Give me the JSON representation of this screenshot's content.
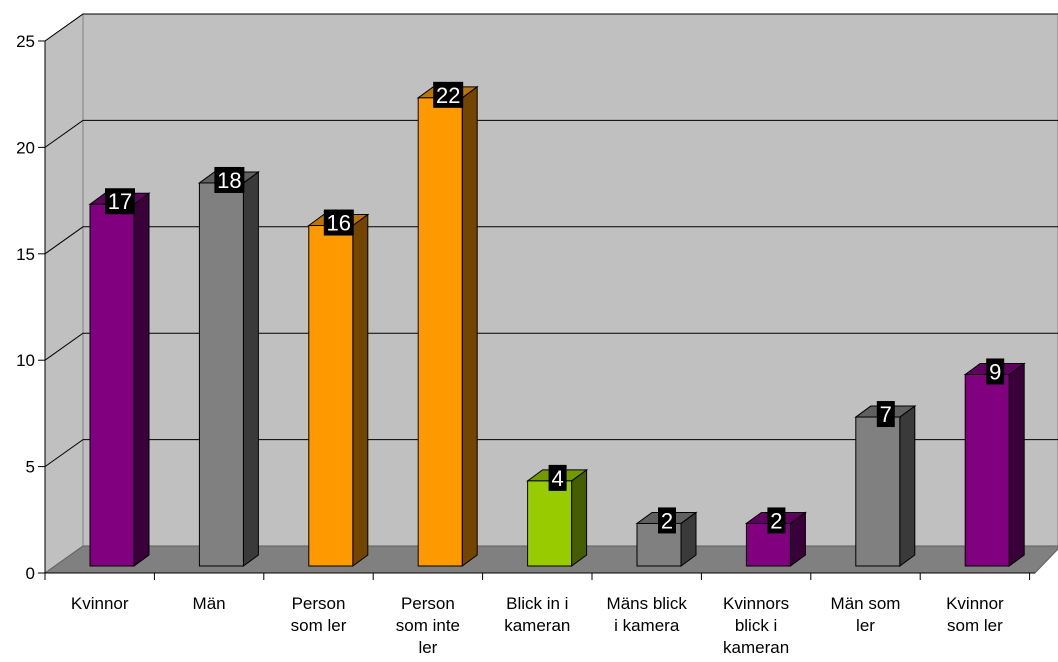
{
  "chart_data": {
    "type": "bar",
    "categories": [
      [
        "Kvinnor"
      ],
      [
        "Män"
      ],
      [
        "Person",
        "som ler"
      ],
      [
        "Person",
        "som inte",
        "ler"
      ],
      [
        "Blick in i",
        "kameran"
      ],
      [
        "Mäns blick",
        "i kamera"
      ],
      [
        "Kvinnors",
        "blick i",
        "kameran"
      ],
      [
        "Män som",
        "ler"
      ],
      [
        "Kvinnor",
        "som ler"
      ]
    ],
    "values": [
      17,
      18,
      16,
      22,
      4,
      2,
      2,
      7,
      9
    ],
    "data_labels": [
      "17",
      "18",
      "16",
      "22",
      "4",
      "2",
      "2",
      "7",
      "9"
    ],
    "bar_colors": [
      "#800080",
      "#808080",
      "#FF9900",
      "#FF9900",
      "#99CC00",
      "#808080",
      "#800080",
      "#808080",
      "#800080"
    ],
    "ylim": [
      0,
      25
    ],
    "yticks": [
      0,
      5,
      10,
      15,
      20,
      25
    ],
    "ytick_labels": [
      "0",
      "5",
      "10",
      "15",
      "20",
      "25"
    ],
    "grid": true,
    "style": "3d-column",
    "colors": {
      "wall": "#C0C0C0",
      "floor": "#808080",
      "gridline": "#000000",
      "label_box": "#000000",
      "label_text": "#FFFFFF"
    },
    "title": "",
    "xlabel": "",
    "ylabel": ""
  }
}
